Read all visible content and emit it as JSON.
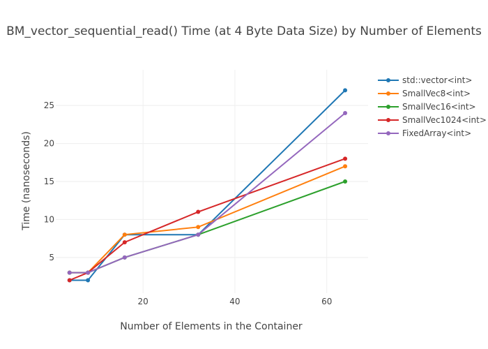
{
  "chart_data": {
    "type": "line",
    "title": "BM_vector_sequential_read() Time (at 4 Byte Data Size) by Number of Elements",
    "xlabel": "Number of Elements in the Container",
    "ylabel": "Time (nanoseconds)",
    "x": [
      4,
      8,
      16,
      32,
      64
    ],
    "xlim": [
      1,
      69
    ],
    "ylim": [
      0.3,
      29.7
    ],
    "xticks": [
      20,
      40,
      60
    ],
    "yticks": [
      5,
      10,
      15,
      20,
      25
    ],
    "grid": true,
    "legend_position": "right",
    "series": [
      {
        "name": "std::vector<int>",
        "color": "#1f77b4",
        "values": [
          2,
          2,
          8,
          8,
          27
        ]
      },
      {
        "name": "SmallVec8<int>",
        "color": "#ff7f0e",
        "values": [
          3,
          3,
          8,
          9,
          17
        ]
      },
      {
        "name": "SmallVec16<int>",
        "color": "#2ca02c",
        "values": [
          3,
          3,
          5,
          8,
          15
        ]
      },
      {
        "name": "SmallVec1024<int>",
        "color": "#d62728",
        "values": [
          2,
          3,
          7,
          11,
          18
        ]
      },
      {
        "name": "FixedArray<int>",
        "color": "#9467bd",
        "values": [
          3,
          3,
          5,
          8,
          24
        ]
      }
    ]
  }
}
